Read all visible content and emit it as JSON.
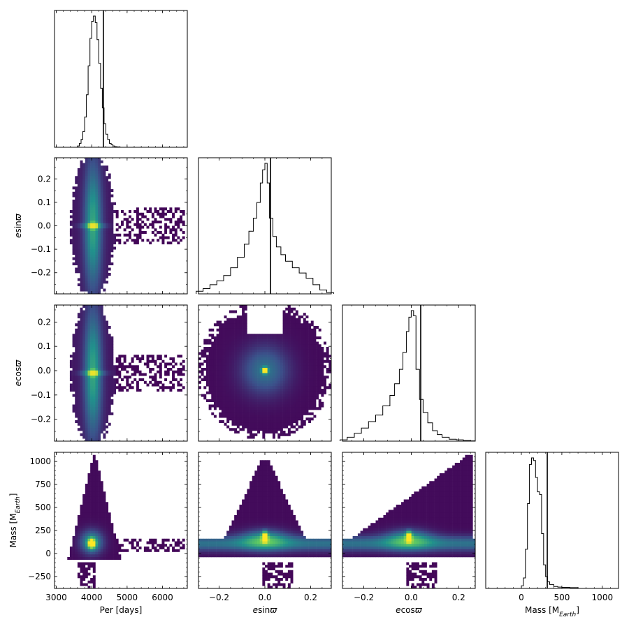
{
  "figure": {
    "type": "corner-plot",
    "colormap": [
      "#440154",
      "#3b528b",
      "#21918c",
      "#5ec962",
      "#fde725"
    ]
  },
  "labels": {
    "per": "Per [days]",
    "esin": "esinϖ",
    "ecos": "ecosϖ",
    "mass_ylabel": "Mass [M",
    "mass_sub": "Earth",
    "mass_close": "]"
  },
  "chart_data": [
    {
      "panel": "hist-per",
      "type": "histogram",
      "xlim": [
        2950,
        6700
      ],
      "xticks": [
        3000,
        4000,
        5000,
        6000
      ],
      "bins": [
        3600,
        3650,
        3700,
        3750,
        3800,
        3850,
        3900,
        3950,
        4000,
        4050,
        4100,
        4150,
        4200,
        4250,
        4300,
        4350,
        4400,
        4450,
        4500,
        4550,
        4600,
        4650,
        4700,
        4750,
        4800
      ],
      "counts": [
        0.01,
        0.03,
        0.06,
        0.12,
        0.23,
        0.4,
        0.62,
        0.83,
        0.96,
        1.0,
        0.95,
        0.82,
        0.64,
        0.45,
        0.3,
        0.18,
        0.1,
        0.06,
        0.03,
        0.02,
        0.01,
        0.005,
        0.003,
        0.001
      ],
      "truth": 4330
    },
    {
      "panel": "hist-esin",
      "type": "histogram",
      "xlim": [
        -0.29,
        0.29
      ],
      "xticks": [
        -0.2,
        0.0,
        0.2
      ],
      "bins": [
        -0.3,
        -0.27,
        -0.24,
        -0.21,
        -0.18,
        -0.15,
        -0.12,
        -0.09,
        -0.07,
        -0.05,
        -0.035,
        -0.02,
        -0.01,
        0.0,
        0.01,
        0.02,
        0.035,
        0.05,
        0.07,
        0.09,
        0.12,
        0.15,
        0.18,
        0.21,
        0.24,
        0.27,
        0.3
      ],
      "counts": [
        0.02,
        0.04,
        0.07,
        0.1,
        0.14,
        0.2,
        0.28,
        0.38,
        0.48,
        0.58,
        0.7,
        0.85,
        0.95,
        1.0,
        0.85,
        0.58,
        0.44,
        0.36,
        0.3,
        0.25,
        0.2,
        0.16,
        0.12,
        0.07,
        0.03,
        0.01
      ],
      "truth": 0.025
    },
    {
      "panel": "hist-ecos",
      "type": "histogram",
      "xlim": [
        -0.29,
        0.27
      ],
      "xticks": [
        -0.2,
        0.0,
        0.2
      ],
      "bins": [
        -0.3,
        -0.27,
        -0.24,
        -0.21,
        -0.18,
        -0.15,
        -0.12,
        -0.09,
        -0.07,
        -0.05,
        -0.035,
        -0.02,
        -0.01,
        0.0,
        0.01,
        0.02,
        0.035,
        0.05,
        0.07,
        0.09,
        0.11,
        0.13,
        0.16,
        0.19,
        0.22,
        0.25,
        0.27
      ],
      "counts": [
        0.01,
        0.03,
        0.06,
        0.1,
        0.15,
        0.2,
        0.27,
        0.35,
        0.44,
        0.55,
        0.68,
        0.84,
        0.95,
        1.0,
        0.96,
        0.55,
        0.32,
        0.22,
        0.14,
        0.08,
        0.05,
        0.03,
        0.015,
        0.01,
        0.005,
        0.002
      ],
      "truth": 0.04
    },
    {
      "panel": "hist-mass",
      "type": "histogram",
      "xlim": [
        -440,
        1200
      ],
      "xticks": [
        0,
        500,
        1000
      ],
      "bins": [
        0,
        25,
        50,
        75,
        100,
        125,
        150,
        175,
        200,
        225,
        250,
        275,
        300,
        325,
        350,
        400,
        450,
        500,
        600,
        700
      ],
      "counts": [
        0.02,
        0.08,
        0.3,
        0.65,
        0.95,
        1.0,
        0.98,
        0.85,
        0.74,
        0.72,
        0.42,
        0.18,
        0.09,
        0.05,
        0.03,
        0.015,
        0.01,
        0.008,
        0.006
      ],
      "truth": 320
    },
    {
      "panel": "scatter-per-esin",
      "type": "heatmap",
      "xlim": [
        2950,
        6700
      ],
      "ylim": [
        -0.29,
        0.29
      ],
      "yticks": [
        -0.2,
        -0.1,
        0.0,
        0.1,
        0.2
      ],
      "peak": [
        4050,
        0.0
      ]
    },
    {
      "panel": "scatter-per-ecos",
      "type": "heatmap",
      "xlim": [
        2950,
        6700
      ],
      "ylim": [
        -0.29,
        0.27
      ],
      "yticks": [
        -0.2,
        -0.1,
        0.0,
        0.1,
        0.2
      ],
      "peak": [
        4050,
        0.0
      ]
    },
    {
      "panel": "scatter-esin-ecos",
      "type": "heatmap",
      "xlim": [
        -0.29,
        0.29
      ],
      "ylim": [
        -0.29,
        0.27
      ],
      "peak": [
        0.0,
        0.0
      ]
    },
    {
      "panel": "scatter-per-mass",
      "type": "heatmap",
      "xlim": [
        2950,
        6700
      ],
      "ylim": [
        -380,
        1100
      ],
      "yticks": [
        -250,
        0,
        250,
        500,
        750,
        1000
      ],
      "xticks": [
        3000,
        4000,
        5000,
        6000
      ],
      "peak": [
        4000,
        150
      ]
    },
    {
      "panel": "scatter-esin-mass",
      "type": "heatmap",
      "xlim": [
        -0.29,
        0.29
      ],
      "ylim": [
        -380,
        1100
      ],
      "xticks": [
        -0.2,
        0.0,
        0.2
      ],
      "peak": [
        0.0,
        190
      ]
    },
    {
      "panel": "scatter-ecos-mass",
      "type": "heatmap",
      "xlim": [
        -0.29,
        0.27
      ],
      "ylim": [
        -380,
        1100
      ],
      "xticks": [
        -0.2,
        0.0,
        0.2
      ],
      "peak": [
        0.0,
        200
      ]
    }
  ]
}
